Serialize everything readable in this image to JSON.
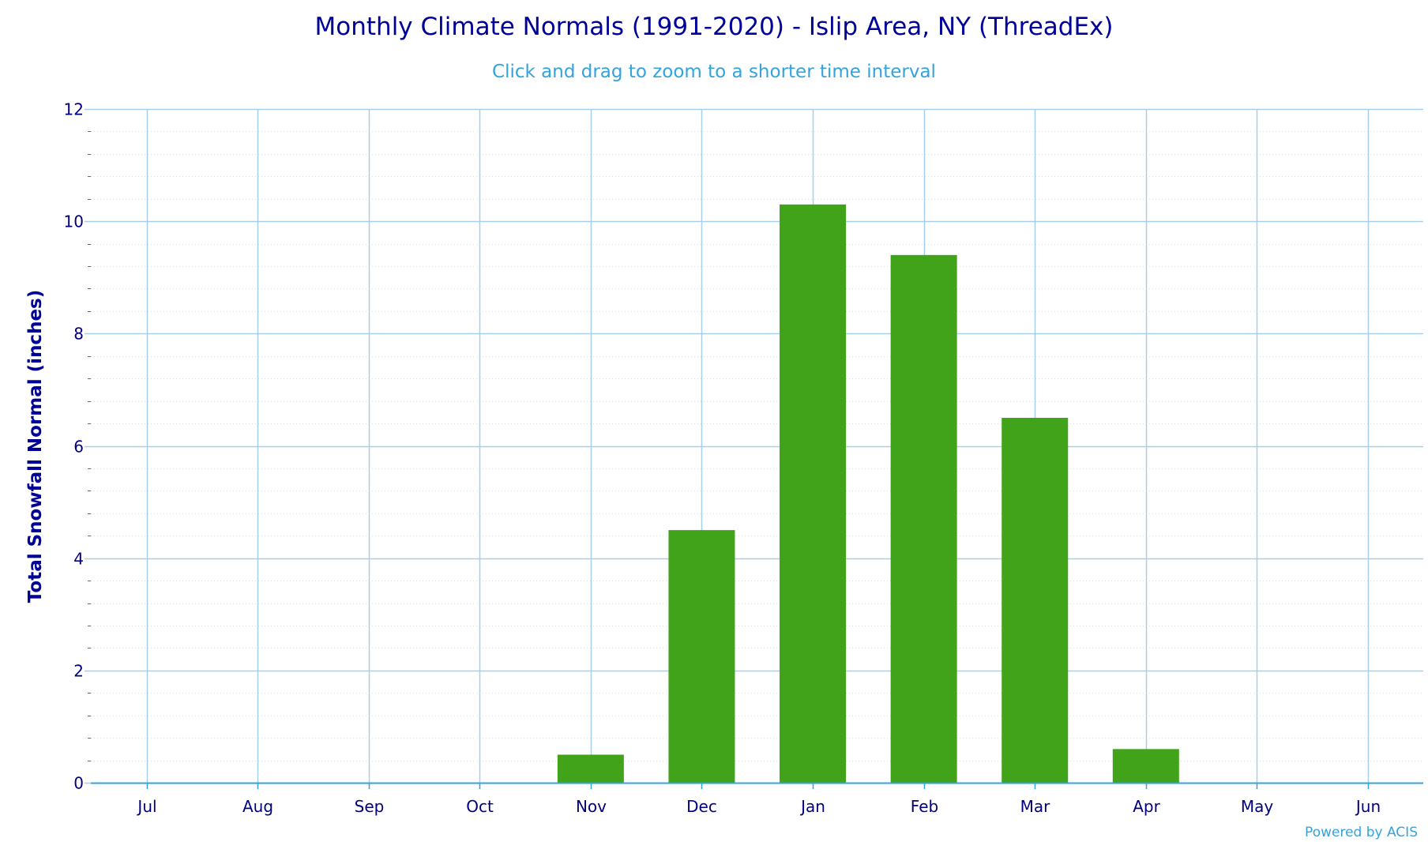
{
  "chart_data": {
    "type": "bar",
    "title": "Monthly Climate Normals (1991-2020) - Islip Area, NY (ThreadEx)",
    "subtitle": "Click and drag to zoom to a shorter time interval",
    "xlabel": "",
    "ylabel": "Total Snowfall Normal (inches)",
    "categories": [
      "Jul",
      "Aug",
      "Sep",
      "Oct",
      "Nov",
      "Dec",
      "Jan",
      "Feb",
      "Mar",
      "Apr",
      "May",
      "Jun"
    ],
    "series": [
      {
        "values": [
          0,
          0,
          0,
          0,
          0.5,
          4.5,
          10.3,
          9.4,
          6.5,
          0.6,
          0,
          0
        ],
        "color": "#41a31a"
      }
    ],
    "ylim": [
      0,
      12
    ],
    "yticks": [
      0,
      2,
      4,
      6,
      8,
      10,
      12
    ],
    "grid": true,
    "gridColor": "#a6cfec",
    "minorGridColor": "#dddddd",
    "axisColor": "#33a3dc",
    "credits": "Powered by ACIS"
  }
}
